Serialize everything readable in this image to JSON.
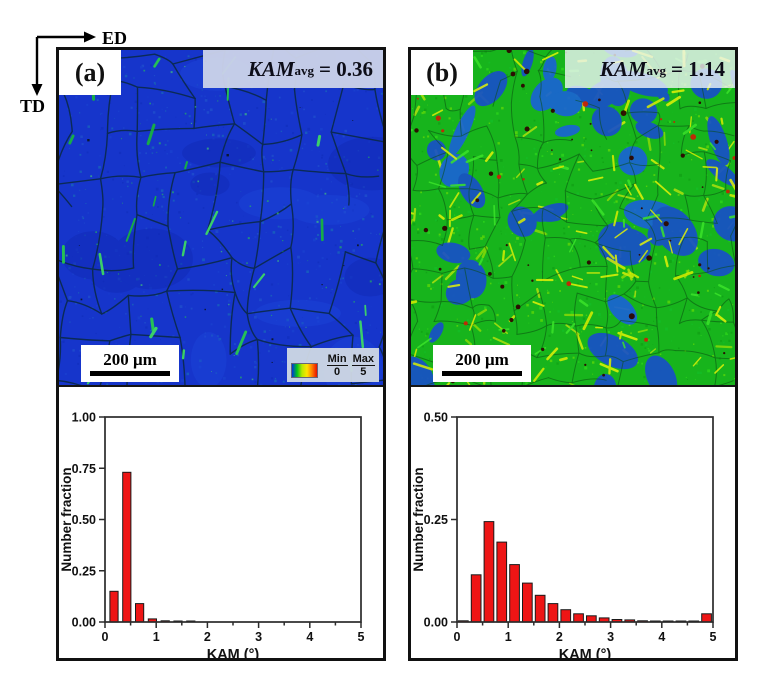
{
  "axes_indicator": {
    "horizontal": "ED",
    "vertical": "TD"
  },
  "kam_scale_colors": [
    "#0033e0",
    "#00c31c",
    "#b8e800",
    "#ffe400",
    "#ff7d00",
    "#e81000"
  ],
  "panels": [
    {
      "label": "(a)",
      "kam_term": "KAM",
      "kam_sub": "avg",
      "kam_eq": "= 0.36",
      "scale_bar": "200 μm",
      "legend": {
        "min": "Min",
        "min_val": "0",
        "max": "Max",
        "max_val": "5"
      },
      "map_colors": {
        "base": "#1635cb",
        "boundary": "#0b2a50",
        "accent": "#27d04a"
      }
    },
    {
      "label": "(b)",
      "kam_term": "KAM",
      "kam_sub": "avg",
      "kam_eq": "= 1.14",
      "scale_bar": "200 μm",
      "map_colors": {
        "base": "#17b41c",
        "grain": "#1850c8",
        "streak": "#e3f307",
        "hotspot": "#2e0800"
      }
    }
  ],
  "chart_data": [
    {
      "type": "bar",
      "title": "",
      "xlabel": "KAM (°)",
      "ylabel": "Number fraction",
      "xlim": [
        0,
        5
      ],
      "ylim": [
        0,
        1.0
      ],
      "xticks": [
        0,
        1,
        2,
        3,
        4,
        5
      ],
      "x_minor_step": 0.5,
      "ytick_labels": [
        "0.00",
        "0.25",
        "0.50",
        "0.75",
        "1.00"
      ],
      "bar_color": "#ee1515",
      "bar_width": 0.16,
      "x": [
        0.175,
        0.425,
        0.675,
        0.925,
        1.175,
        1.425,
        1.675
      ],
      "values": [
        0.15,
        0.73,
        0.09,
        0.015,
        0.006,
        0.005,
        0.004
      ]
    },
    {
      "type": "bar",
      "title": "",
      "xlabel": "KAM (°)",
      "ylabel": "Number fraction",
      "xlim": [
        0,
        5
      ],
      "ylim": [
        0,
        0.5
      ],
      "xticks": [
        0,
        1,
        2,
        3,
        4,
        5
      ],
      "x_minor_step": 0.5,
      "ytick_labels": [
        "0.00",
        "0.25",
        "0.50"
      ],
      "bar_color": "#ee1515",
      "bar_width": 0.19,
      "x": [
        0.125,
        0.375,
        0.625,
        0.875,
        1.125,
        1.375,
        1.625,
        1.875,
        2.125,
        2.375,
        2.625,
        2.875,
        3.125,
        3.375,
        3.625,
        3.875,
        4.125,
        4.375,
        4.625,
        4.875
      ],
      "values": [
        0.003,
        0.115,
        0.245,
        0.195,
        0.14,
        0.095,
        0.065,
        0.045,
        0.03,
        0.02,
        0.015,
        0.01,
        0.006,
        0.005,
        0.003,
        0.002,
        0.002,
        0.002,
        0.002,
        0.02
      ]
    }
  ]
}
